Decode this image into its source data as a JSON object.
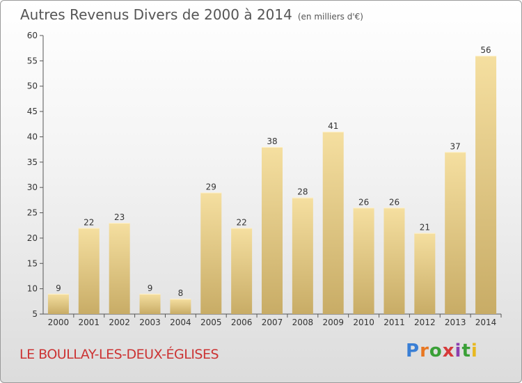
{
  "header": {
    "title": "Autres Revenus Divers de 2000 à 2014",
    "unit": "(en milliers d'€)"
  },
  "footer": {
    "commune": "LE BOULLAY-LES-DEUX-ÉGLISES",
    "logo": "Proxiti"
  },
  "colors": {
    "bar_top": "#f5dfa0",
    "bar_bottom": "#c8ac66",
    "axis": "#555555",
    "commune": "#cc3333"
  },
  "chart_data": {
    "type": "bar",
    "categories": [
      "2000",
      "2001",
      "2002",
      "2003",
      "2004",
      "2005",
      "2006",
      "2007",
      "2008",
      "2009",
      "2010",
      "2011",
      "2012",
      "2013",
      "2014"
    ],
    "values": [
      9,
      22,
      23,
      9,
      8,
      29,
      22,
      38,
      28,
      41,
      26,
      26,
      21,
      37,
      56
    ],
    "yticks": [
      5,
      10,
      15,
      20,
      25,
      30,
      35,
      40,
      45,
      50,
      55,
      60
    ],
    "ylim": [
      5,
      60
    ],
    "grid": false,
    "legend": "none",
    "data_labels": true
  }
}
